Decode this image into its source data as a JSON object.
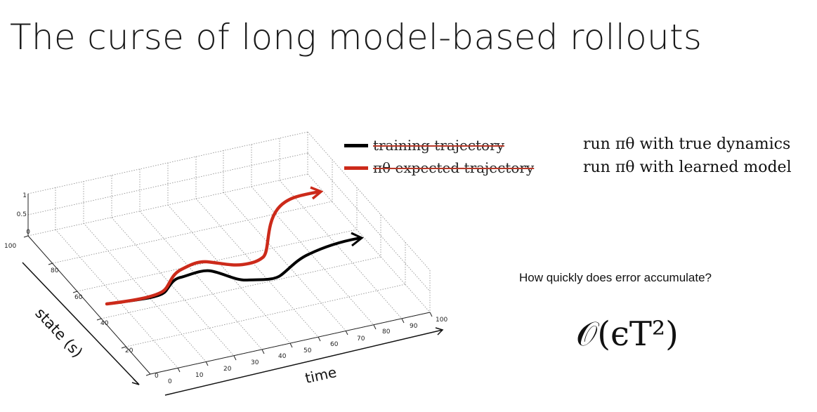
{
  "slide": {
    "title": "The curse of long model-based rollouts"
  },
  "legend": {
    "items": [
      {
        "label": "training trajectory",
        "color": "#000000"
      },
      {
        "label": "πθ expected trajectory",
        "color": "#cc2a1a"
      }
    ],
    "runs": [
      "run πθ with true dynamics",
      "run πθ with learned model"
    ]
  },
  "question": "How quickly does error accumulate?",
  "formula": {
    "text": "𝒪(ϵT²)"
  },
  "plot": {
    "x_label": "time",
    "y_label": "state (s)",
    "x_ticks": [
      "0",
      "10",
      "20",
      "30",
      "40",
      "50",
      "60",
      "70",
      "80",
      "90",
      "100"
    ],
    "y_ticks": [
      "0",
      "20",
      "40",
      "60",
      "80",
      "100"
    ],
    "z_ticks": [
      "0",
      "0.5",
      "1"
    ],
    "colors": {
      "true": "#000000",
      "learned": "#cc2a1a"
    }
  }
}
